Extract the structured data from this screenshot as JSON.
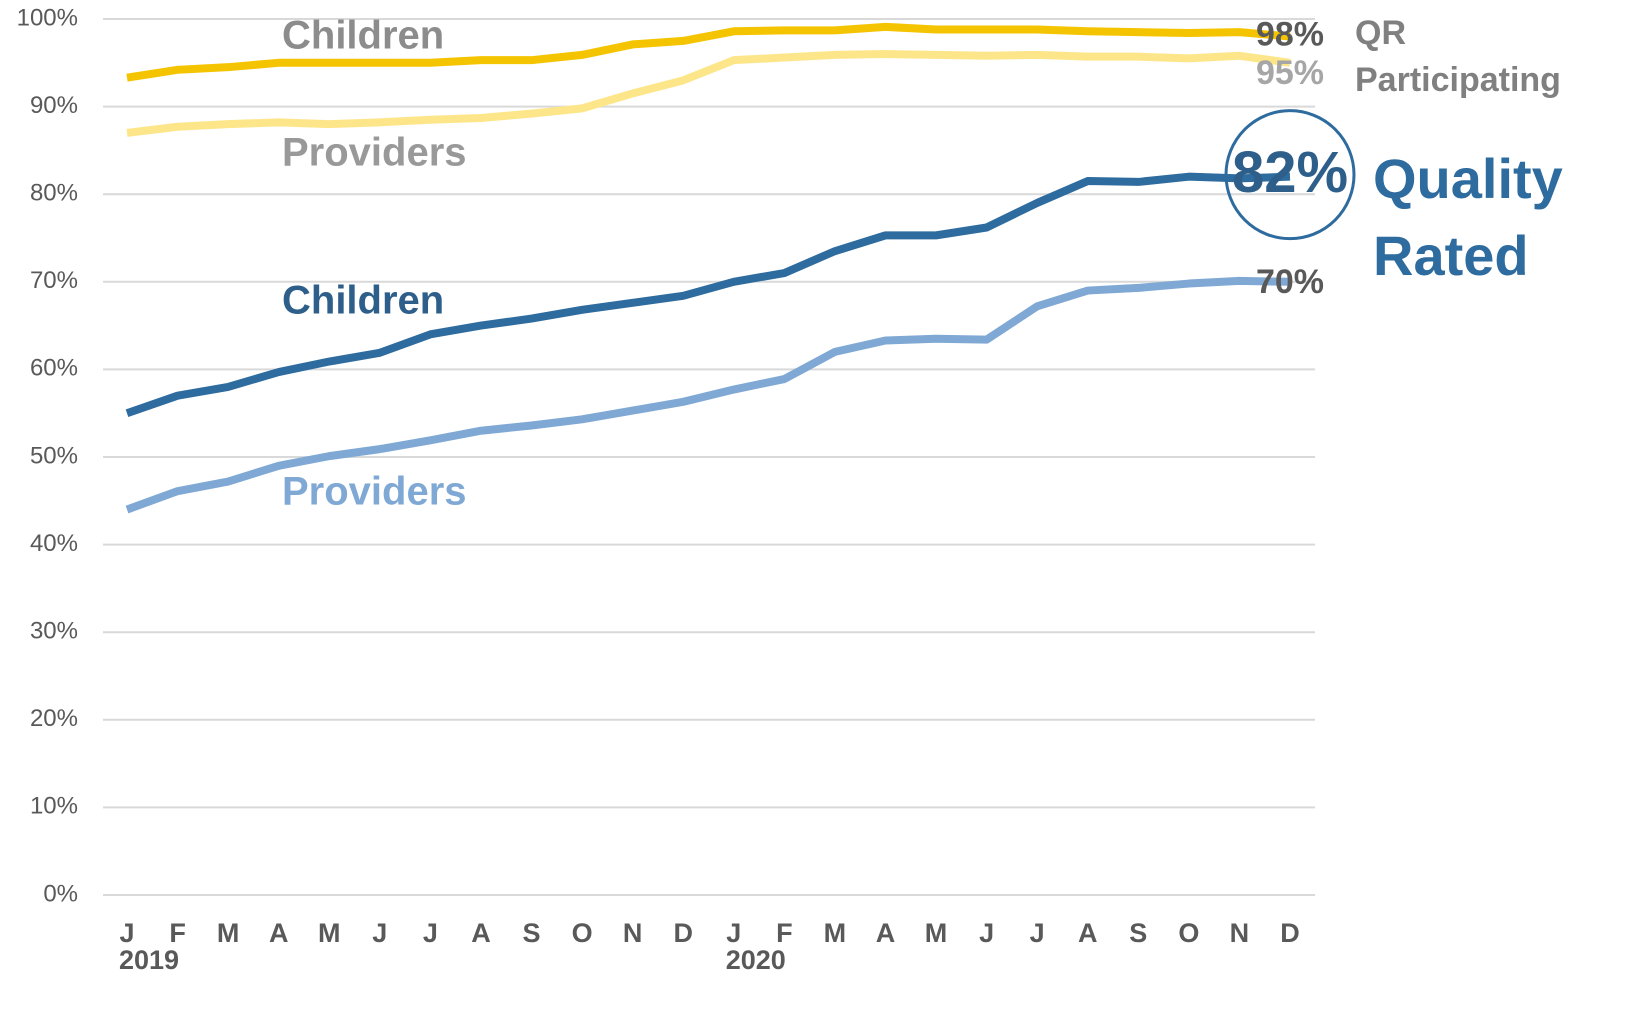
{
  "chart_data": {
    "type": "line",
    "category_groups": [
      {
        "name": "2019",
        "categories": [
          "J",
          "F",
          "M",
          "A",
          "M",
          "J",
          "J",
          "A",
          "S",
          "O",
          "N",
          "D"
        ]
      },
      {
        "name": "2020",
        "categories": [
          "J",
          "F",
          "M",
          "A",
          "M",
          "J",
          "J",
          "A",
          "S",
          "O",
          "N",
          "D"
        ]
      }
    ],
    "series": [
      {
        "name": "Children",
        "color": "#f5c400",
        "label_color": "#8c8c8c",
        "values": [
          93.3,
          94.2,
          94.5,
          95,
          95,
          95,
          95,
          95.3,
          95.3,
          95.9,
          97.1,
          97.5,
          98.6,
          98.7,
          98.7,
          99.1,
          98.8,
          98.8,
          98.8,
          98.6,
          98.5,
          98.4,
          98.5,
          98
        ],
        "value_labels": [
          null,
          null,
          null,
          null,
          null,
          null,
          null,
          null,
          null,
          null,
          null,
          null,
          null,
          null,
          null,
          null,
          null,
          null,
          null,
          null,
          null,
          null,
          null,
          "98%"
        ]
      },
      {
        "name": "Providers",
        "color": "#fde68a",
        "label_color": "#999999",
        "values": [
          87,
          87.7,
          88,
          88.2,
          88,
          88.2,
          88.5,
          88.7,
          89.2,
          89.8,
          91.5,
          93,
          95.3,
          95.6,
          95.9,
          96,
          95.9,
          95.8,
          95.9,
          95.7,
          95.7,
          95.5,
          95.8,
          95
        ],
        "value_labels": [
          null,
          null,
          null,
          null,
          null,
          null,
          null,
          null,
          null,
          null,
          null,
          null,
          null,
          null,
          null,
          null,
          null,
          null,
          null,
          null,
          null,
          null,
          null,
          "95%"
        ]
      },
      {
        "name": "Children",
        "color": "#2e6b9e",
        "label_color": "#2e5f8a",
        "values": [
          55,
          57,
          58,
          59.7,
          60.9,
          61.9,
          64,
          65,
          65.8,
          66.8,
          67.6,
          68.4,
          70,
          71,
          73.5,
          75.3,
          75.3,
          76.2,
          79,
          81.5,
          81.4,
          82,
          81.8,
          82
        ],
        "value_labels": [
          null,
          null,
          null,
          null,
          null,
          null,
          null,
          null,
          null,
          null,
          null,
          null,
          null,
          null,
          null,
          null,
          null,
          null,
          null,
          null,
          null,
          null,
          null,
          "82%"
        ]
      },
      {
        "name": "Providers",
        "color": "#7fa9d4",
        "label_color": "#7fa9d4",
        "values": [
          44,
          46.1,
          47.2,
          49,
          50.1,
          50.9,
          51.9,
          53,
          53.6,
          54.3,
          55.3,
          56.3,
          57.7,
          58.9,
          62,
          63.3,
          63.5,
          63.4,
          67.2,
          69,
          69.3,
          69.8,
          70.1,
          70
        ],
        "value_labels": [
          null,
          null,
          null,
          null,
          null,
          null,
          null,
          null,
          null,
          null,
          null,
          null,
          null,
          null,
          null,
          null,
          null,
          null,
          null,
          null,
          null,
          null,
          null,
          "70%"
        ]
      }
    ],
    "group_labels": [
      {
        "lines": [
          "QR",
          "Participating"
        ],
        "color": "#808080"
      },
      {
        "lines": [
          "Quality",
          "Rated"
        ],
        "color": "#2e6b9e"
      }
    ],
    "ylim": [
      0,
      100
    ],
    "yticks": [
      {
        "value": 0,
        "label": "0%"
      },
      {
        "value": 10,
        "label": "10%"
      },
      {
        "value": 20,
        "label": "20%"
      },
      {
        "value": 30,
        "label": "30%"
      },
      {
        "value": 40,
        "label": "40%"
      },
      {
        "value": 50,
        "label": "50%"
      },
      {
        "value": 60,
        "label": "60%"
      },
      {
        "value": 70,
        "label": "70%"
      },
      {
        "value": 80,
        "label": "80%"
      },
      {
        "value": 90,
        "label": "90%"
      },
      {
        "value": 100,
        "label": "100%"
      }
    ],
    "grid": true
  }
}
